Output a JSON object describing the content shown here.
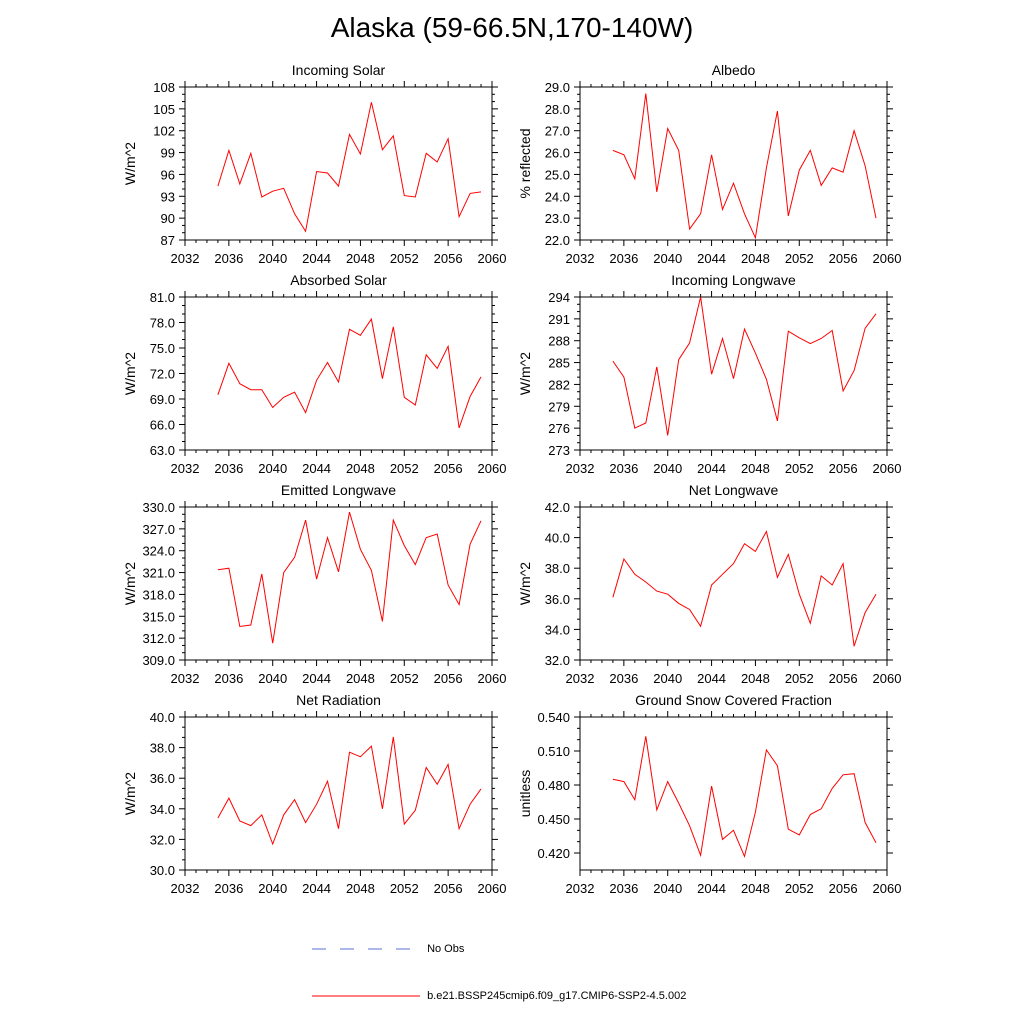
{
  "title": "Alaska (59-66.5N,170-140W)",
  "legend": {
    "obs_label": "No Obs",
    "obs_color": "#5a6fd6",
    "model_label": "b.e21.BSSP245cmip6.f09_g17.CMIP6-SSP2-4.5.002",
    "model_color": "#ff0000"
  },
  "chart_data": [
    {
      "type": "line",
      "title": "Incoming Solar",
      "ylabel": "W/m^2",
      "xlim": [
        2032,
        2060
      ],
      "ylim": [
        87,
        108
      ],
      "xticks": [
        "2032",
        "2036",
        "2040",
        "2044",
        "2048",
        "2052",
        "2056",
        "2060"
      ],
      "yticks": [
        "87",
        "90",
        "93",
        "96",
        "99",
        "102",
        "105",
        "108"
      ],
      "x": [
        2035,
        2036,
        2037,
        2038,
        2039,
        2040,
        2041,
        2042,
        2043,
        2044,
        2045,
        2046,
        2047,
        2048,
        2049,
        2050,
        2051,
        2052,
        2053,
        2054,
        2055,
        2056,
        2057,
        2058,
        2059
      ],
      "y": [
        94.4,
        99.3,
        94.7,
        98.9,
        92.9,
        93.7,
        94.1,
        90.6,
        88.2,
        96.4,
        96.2,
        94.4,
        101.5,
        98.8,
        105.9,
        99.4,
        101.3,
        93.1,
        92.9,
        98.9,
        97.7,
        100.9,
        90.2,
        93.4,
        93.6
      ]
    },
    {
      "type": "line",
      "title": "Albedo",
      "ylabel": "% reflected",
      "xlim": [
        2032,
        2060
      ],
      "ylim": [
        22,
        29
      ],
      "xticks": [
        "2032",
        "2036",
        "2040",
        "2044",
        "2048",
        "2052",
        "2056",
        "2060"
      ],
      "yticks": [
        "22.0",
        "23.0",
        "24.0",
        "25.0",
        "26.0",
        "27.0",
        "28.0",
        "29.0"
      ],
      "x": [
        2035,
        2036,
        2037,
        2038,
        2039,
        2040,
        2041,
        2042,
        2043,
        2044,
        2045,
        2046,
        2047,
        2048,
        2049,
        2050,
        2051,
        2052,
        2053,
        2054,
        2055,
        2056,
        2057,
        2058,
        2059
      ],
      "y": [
        26.1,
        25.9,
        24.8,
        28.7,
        24.2,
        27.1,
        26.1,
        22.5,
        23.2,
        25.9,
        23.4,
        24.6,
        23.2,
        22.1,
        25.3,
        27.9,
        23.1,
        25.2,
        26.1,
        24.5,
        25.3,
        25.1,
        27.0,
        25.4,
        23.0
      ]
    },
    {
      "type": "line",
      "title": "Absorbed Solar",
      "ylabel": "W/m^2",
      "xlim": [
        2032,
        2060
      ],
      "ylim": [
        63,
        81
      ],
      "xticks": [
        "2032",
        "2036",
        "2040",
        "2044",
        "2048",
        "2052",
        "2056",
        "2060"
      ],
      "yticks": [
        "63.0",
        "66.0",
        "69.0",
        "72.0",
        "75.0",
        "78.0",
        "81.0"
      ],
      "x": [
        2035,
        2036,
        2037,
        2038,
        2039,
        2040,
        2041,
        2042,
        2043,
        2044,
        2045,
        2046,
        2047,
        2048,
        2049,
        2050,
        2051,
        2052,
        2053,
        2054,
        2055,
        2056,
        2057,
        2058,
        2059
      ],
      "y": [
        69.5,
        73.2,
        70.8,
        70.1,
        70.1,
        68.0,
        69.2,
        69.8,
        67.4,
        71.2,
        73.3,
        71.0,
        77.2,
        76.5,
        78.4,
        71.4,
        77.5,
        69.2,
        68.3,
        74.2,
        72.6,
        75.2,
        65.6,
        69.3,
        71.6
      ]
    },
    {
      "type": "line",
      "title": "Incoming Longwave",
      "ylabel": "W/m^2",
      "xlim": [
        2032,
        2060
      ],
      "ylim": [
        273,
        294
      ],
      "xticks": [
        "2032",
        "2036",
        "2040",
        "2044",
        "2048",
        "2052",
        "2056",
        "2060"
      ],
      "yticks": [
        "273",
        "276",
        "279",
        "282",
        "285",
        "288",
        "291",
        "294"
      ],
      "x": [
        2035,
        2036,
        2037,
        2038,
        2039,
        2040,
        2041,
        2042,
        2043,
        2044,
        2045,
        2046,
        2047,
        2048,
        2049,
        2050,
        2051,
        2052,
        2053,
        2054,
        2055,
        2056,
        2057,
        2058,
        2059
      ],
      "y": [
        285.2,
        283.0,
        276.0,
        276.7,
        284.4,
        275.0,
        285.4,
        287.7,
        294.0,
        283.4,
        288.3,
        282.8,
        289.6,
        286.3,
        282.7,
        277.0,
        289.3,
        288.4,
        287.6,
        288.3,
        289.4,
        281.1,
        283.9,
        289.7,
        291.7
      ]
    },
    {
      "type": "line",
      "title": "Emitted Longwave",
      "ylabel": "W/m^2",
      "xlim": [
        2032,
        2060
      ],
      "ylim": [
        309,
        330
      ],
      "xticks": [
        "2032",
        "2036",
        "2040",
        "2044",
        "2048",
        "2052",
        "2056",
        "2060"
      ],
      "yticks": [
        "309.0",
        "312.0",
        "315.0",
        "318.0",
        "321.0",
        "324.0",
        "327.0",
        "330.0"
      ],
      "x": [
        2035,
        2036,
        2037,
        2038,
        2039,
        2040,
        2041,
        2042,
        2043,
        2044,
        2045,
        2046,
        2047,
        2048,
        2049,
        2050,
        2051,
        2052,
        2053,
        2054,
        2055,
        2056,
        2057,
        2058,
        2059
      ],
      "y": [
        321.4,
        321.6,
        313.6,
        313.8,
        320.8,
        311.3,
        321.0,
        323.1,
        328.2,
        320.1,
        325.8,
        321.1,
        329.3,
        324.2,
        321.3,
        314.3,
        328.2,
        324.7,
        322.1,
        325.8,
        326.3,
        319.3,
        316.6,
        324.9,
        328.1
      ]
    },
    {
      "type": "line",
      "title": "Net Longwave",
      "ylabel": "W/m^2",
      "xlim": [
        2032,
        2060
      ],
      "ylim": [
        32,
        42
      ],
      "xticks": [
        "2032",
        "2036",
        "2040",
        "2044",
        "2048",
        "2052",
        "2056",
        "2060"
      ],
      "yticks": [
        "32.0",
        "34.0",
        "36.0",
        "38.0",
        "40.0",
        "42.0"
      ],
      "x": [
        2035,
        2036,
        2037,
        2038,
        2039,
        2040,
        2041,
        2042,
        2043,
        2044,
        2045,
        2046,
        2047,
        2048,
        2049,
        2050,
        2051,
        2052,
        2053,
        2054,
        2055,
        2056,
        2057,
        2058,
        2059
      ],
      "y": [
        36.1,
        38.6,
        37.6,
        37.1,
        36.5,
        36.3,
        35.7,
        35.3,
        34.2,
        36.9,
        37.6,
        38.3,
        39.6,
        39.1,
        40.4,
        37.4,
        38.9,
        36.3,
        34.4,
        37.5,
        36.9,
        38.3,
        32.9,
        35.1,
        36.3
      ]
    },
    {
      "type": "line",
      "title": "Net Radiation",
      "ylabel": "W/m^2",
      "xlim": [
        2032,
        2060
      ],
      "ylim": [
        30,
        40
      ],
      "xticks": [
        "2032",
        "2036",
        "2040",
        "2044",
        "2048",
        "2052",
        "2056",
        "2060"
      ],
      "yticks": [
        "30.0",
        "32.0",
        "34.0",
        "36.0",
        "38.0",
        "40.0"
      ],
      "x": [
        2035,
        2036,
        2037,
        2038,
        2039,
        2040,
        2041,
        2042,
        2043,
        2044,
        2045,
        2046,
        2047,
        2048,
        2049,
        2050,
        2051,
        2052,
        2053,
        2054,
        2055,
        2056,
        2057,
        2058,
        2059
      ],
      "y": [
        33.4,
        34.7,
        33.2,
        32.9,
        33.6,
        31.7,
        33.6,
        34.6,
        33.1,
        34.3,
        35.8,
        32.7,
        37.7,
        37.4,
        38.1,
        34.0,
        38.7,
        33.0,
        33.9,
        36.7,
        35.6,
        36.9,
        32.7,
        34.3,
        35.3
      ]
    },
    {
      "type": "line",
      "title": "Ground Snow Covered Fraction",
      "ylabel": "unitless",
      "xlim": [
        2032,
        2060
      ],
      "ylim": [
        0.405,
        0.54
      ],
      "xticks": [
        "2032",
        "2036",
        "2040",
        "2044",
        "2048",
        "2052",
        "2056",
        "2060"
      ],
      "yticks": [
        "0.420",
        "0.450",
        "0.480",
        "0.510",
        "0.540"
      ],
      "x": [
        2035,
        2036,
        2037,
        2038,
        2039,
        2040,
        2041,
        2042,
        2043,
        2044,
        2045,
        2046,
        2047,
        2048,
        2049,
        2050,
        2051,
        2052,
        2053,
        2054,
        2055,
        2056,
        2057,
        2058,
        2059
      ],
      "y": [
        0.485,
        0.483,
        0.467,
        0.523,
        0.458,
        0.483,
        0.464,
        0.444,
        0.418,
        0.479,
        0.432,
        0.44,
        0.417,
        0.456,
        0.511,
        0.497,
        0.441,
        0.436,
        0.454,
        0.459,
        0.477,
        0.489,
        0.49,
        0.447,
        0.429
      ]
    }
  ]
}
